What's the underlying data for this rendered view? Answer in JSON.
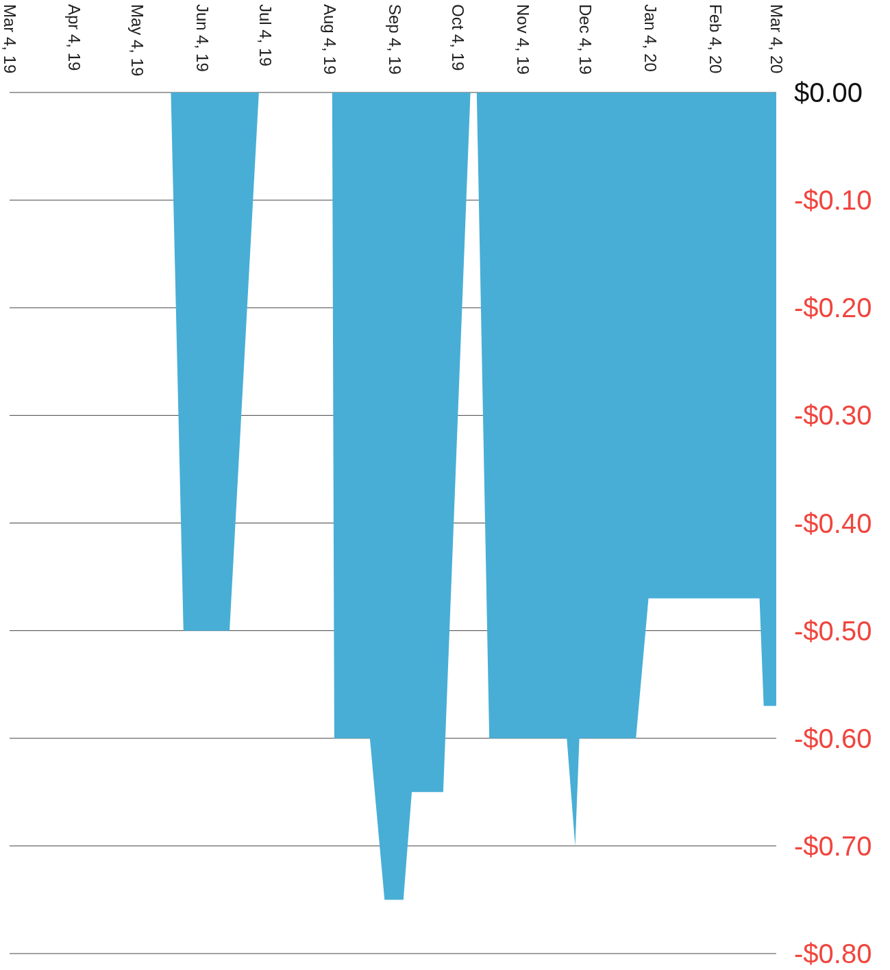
{
  "chart_data": {
    "type": "area",
    "x": [
      "2019-03-04",
      "2019-05-20",
      "2019-05-26",
      "2019-06-17",
      "2019-07-01",
      "2019-08-05",
      "2019-08-06",
      "2019-08-23",
      "2019-08-30",
      "2019-09-08",
      "2019-09-12",
      "2019-09-27",
      "2019-10-10",
      "2019-10-13",
      "2019-10-19",
      "2019-11-25",
      "2019-11-29",
      "2019-12-01",
      "2019-12-28",
      "2020-01-03",
      "2020-02-25",
      "2020-02-27",
      "2020-03-04"
    ],
    "series": [
      {
        "color": "#48aed6",
        "values": [
          0,
          0,
          -0.5,
          -0.5,
          0,
          0,
          -0.6,
          -0.6,
          -0.75,
          -0.75,
          -0.65,
          -0.65,
          0,
          0,
          -0.6,
          -0.6,
          -0.7,
          -0.6,
          -0.6,
          -0.47,
          -0.47,
          -0.57,
          -0.57
        ]
      }
    ],
    "xlim": [
      "2019-03-04",
      "2020-03-04"
    ],
    "xticks": [
      {
        "value": "2019-03-04",
        "label": "Mar 4, 19"
      },
      {
        "value": "2019-04-04",
        "label": "Apr 4, 19"
      },
      {
        "value": "2019-05-04",
        "label": "May 4, 19"
      },
      {
        "value": "2019-06-04",
        "label": "Jun 4, 19"
      },
      {
        "value": "2019-07-04",
        "label": "Jul 4, 19"
      },
      {
        "value": "2019-08-04",
        "label": "Aug 4, 19"
      },
      {
        "value": "2019-09-04",
        "label": "Sep 4, 19"
      },
      {
        "value": "2019-10-04",
        "label": "Oct 4, 19"
      },
      {
        "value": "2019-11-04",
        "label": "Nov 4, 19"
      },
      {
        "value": "2019-12-04",
        "label": "Dec 4, 19"
      },
      {
        "value": "2020-01-04",
        "label": "Jan 4, 20"
      },
      {
        "value": "2020-02-04",
        "label": "Feb 4, 20"
      },
      {
        "value": "2020-03-04",
        "label": "Mar 4, 20"
      }
    ],
    "ylim": [
      -0.8,
      0
    ],
    "yticks": [
      {
        "value": 0,
        "label": "$0.00"
      },
      {
        "value": -0.1,
        "label": "-$0.10"
      },
      {
        "value": -0.2,
        "label": "-$0.20"
      },
      {
        "value": -0.3,
        "label": "-$0.30"
      },
      {
        "value": -0.4,
        "label": "-$0.40"
      },
      {
        "value": -0.5,
        "label": "-$0.50"
      },
      {
        "value": -0.6,
        "label": "-$0.60"
      },
      {
        "value": -0.7,
        "label": "-$0.70"
      },
      {
        "value": -0.8,
        "label": "-$0.80"
      }
    ],
    "grid": "y"
  }
}
